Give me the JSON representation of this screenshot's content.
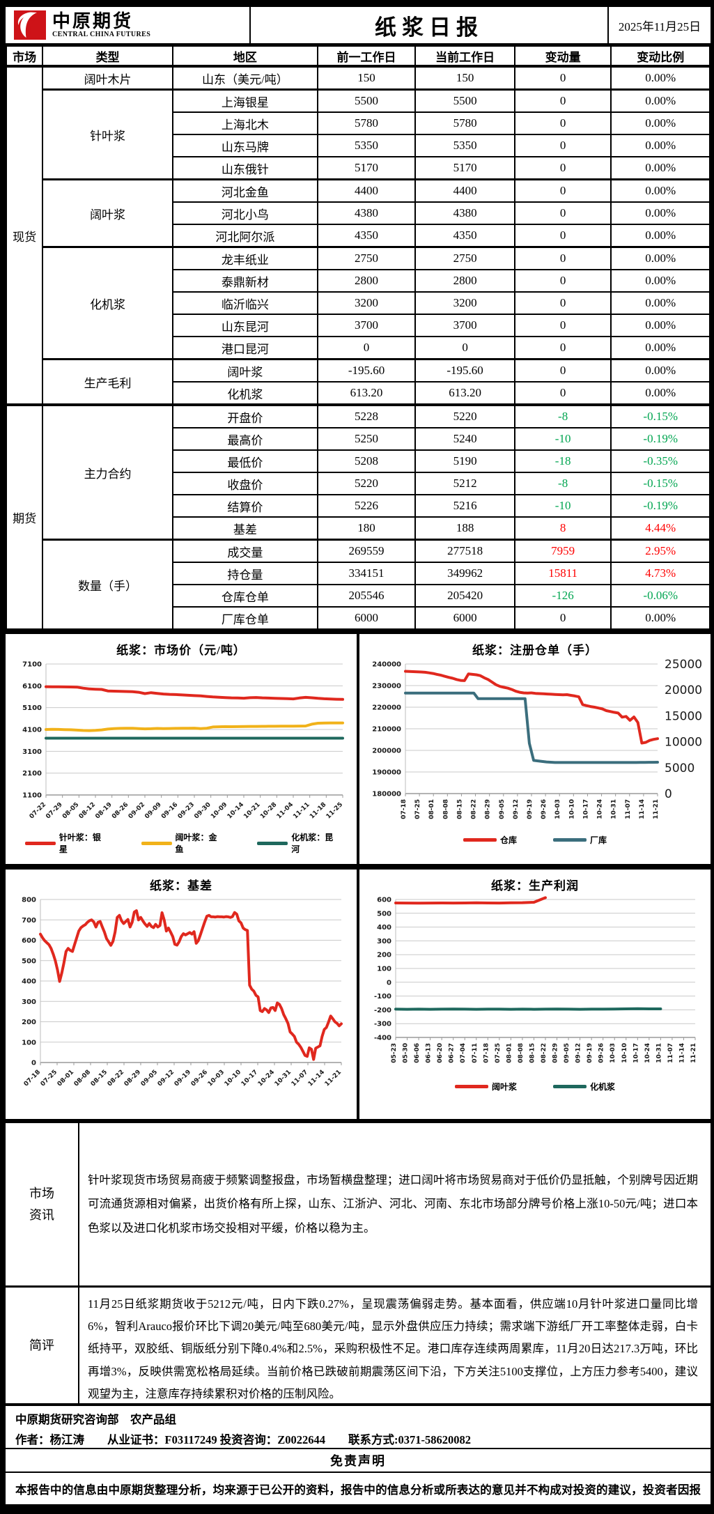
{
  "header": {
    "logo_cn": "中原期货",
    "logo_en": "CENTRAL CHINA FUTURES",
    "title": "纸浆日报",
    "date": "2025年11月25日"
  },
  "colors": {
    "up": "#fe0000",
    "down": "#00a550",
    "red_line": "#e0281e",
    "gold_line": "#f1b21a",
    "teal_line": "#1e685d",
    "slate_line": "#3b6e7d"
  },
  "table": {
    "columns": [
      "市场",
      "类型",
      "地区",
      "前一工作日",
      "当前工作日",
      "变动量",
      "变动比例"
    ],
    "sections": [
      {
        "market": "现货",
        "groups": [
          {
            "type": "阔叶木片",
            "rows": [
              [
                "山东（美元/吨）",
                "150",
                "150",
                "0",
                "0.00%"
              ]
            ]
          },
          {
            "type": "针叶浆",
            "rows": [
              [
                "上海银星",
                "5500",
                "5500",
                "0",
                "0.00%"
              ],
              [
                "上海北木",
                "5780",
                "5780",
                "0",
                "0.00%"
              ],
              [
                "山东马牌",
                "5350",
                "5350",
                "0",
                "0.00%"
              ],
              [
                "山东俄针",
                "5170",
                "5170",
                "0",
                "0.00%"
              ]
            ]
          },
          {
            "type": "阔叶浆",
            "rows": [
              [
                "河北金鱼",
                "4400",
                "4400",
                "0",
                "0.00%"
              ],
              [
                "河北小鸟",
                "4380",
                "4380",
                "0",
                "0.00%"
              ],
              [
                "河北阿尔派",
                "4350",
                "4350",
                "0",
                "0.00%"
              ]
            ]
          },
          {
            "type": "化机浆",
            "rows": [
              [
                "龙丰纸业",
                "2750",
                "2750",
                "0",
                "0.00%"
              ],
              [
                "泰鼎新材",
                "2800",
                "2800",
                "0",
                "0.00%"
              ],
              [
                "临沂临兴",
                "3200",
                "3200",
                "0",
                "0.00%"
              ],
              [
                "山东昆河",
                "3700",
                "3700",
                "0",
                "0.00%"
              ],
              [
                "港口昆河",
                "0",
                "0",
                "0",
                "0.00%"
              ]
            ]
          },
          {
            "type": "生产毛利",
            "rows": [
              [
                "阔叶浆",
                "-195.60",
                "-195.60",
                "0",
                "0.00%"
              ],
              [
                "化机浆",
                "613.20",
                "613.20",
                "0",
                "0.00%"
              ]
            ]
          }
        ]
      },
      {
        "market": "期货",
        "groups": [
          {
            "type": "主力合约",
            "rows": [
              [
                "开盘价",
                "5228",
                "5220",
                "-8",
                "-0.15%"
              ],
              [
                "最高价",
                "5250",
                "5240",
                "-10",
                "-0.19%"
              ],
              [
                "最低价",
                "5208",
                "5190",
                "-18",
                "-0.35%"
              ],
              [
                "收盘价",
                "5220",
                "5212",
                "-8",
                "-0.15%"
              ],
              [
                "结算价",
                "5226",
                "5216",
                "-10",
                "-0.19%"
              ],
              [
                "基差",
                "180",
                "188",
                "8",
                "4.44%"
              ]
            ]
          },
          {
            "type": "数量（手）",
            "rows": [
              [
                "成交量",
                "269559",
                "277518",
                "7959",
                "2.95%"
              ],
              [
                "持仓量",
                "334151",
                "349962",
                "15811",
                "4.73%"
              ],
              [
                "仓库仓单",
                "205546",
                "205420",
                "-126",
                "-0.06%"
              ],
              [
                "厂库仓单",
                "6000",
                "6000",
                "0",
                "0.00%"
              ]
            ]
          }
        ]
      }
    ]
  },
  "chart_data": [
    {
      "type": "line",
      "title": "纸浆：市场价（元/吨）",
      "ylim": [
        1100,
        7100
      ],
      "ystep": 1000,
      "grid": true,
      "legend_position": "bottom",
      "x_rotate": -45,
      "x_labels": [
        "07-22",
        "07-29",
        "08-05",
        "08-12",
        "08-19",
        "08-26",
        "09-02",
        "09-09",
        "09-16",
        "09-23",
        "09-30",
        "10-09",
        "10-14",
        "10-21",
        "10-28",
        "11-04",
        "11-11",
        "11-18",
        "11-25"
      ],
      "series": [
        {
          "name": "针叶浆：银星",
          "color": "#e0281e",
          "values": [
            6060,
            6055,
            6052,
            6050,
            6046,
            6042,
            5992,
            5958,
            5944,
            5934,
            5866,
            5856,
            5848,
            5840,
            5830,
            5804,
            5744,
            5786,
            5752,
            5724,
            5710,
            5698,
            5682,
            5668,
            5652,
            5638,
            5612,
            5592,
            5578,
            5562,
            5550,
            5542,
            5532,
            5556,
            5564,
            5550,
            5540,
            5530,
            5520,
            5510,
            5500,
            5542,
            5570,
            5552,
            5528,
            5508,
            5494,
            5484,
            5478
          ]
        },
        {
          "name": "阔叶浆：金鱼",
          "color": "#f1b21a",
          "values": [
            4100,
            4108,
            4102,
            4094,
            4086,
            4072,
            4056,
            4048,
            4060,
            4082,
            4118,
            4138,
            4150,
            4154,
            4158,
            4140,
            4128,
            4134,
            4148,
            4140,
            4144,
            4150,
            4154,
            4158,
            4162,
            4140,
            4158,
            4214,
            4226,
            4232,
            4228,
            4232,
            4238,
            4240,
            4242,
            4244,
            4246,
            4248,
            4250,
            4252,
            4254,
            4256,
            4258,
            4344,
            4386,
            4394,
            4400,
            4400,
            4400
          ]
        },
        {
          "name": "化机浆：昆河",
          "color": "#1e685d",
          "values": [
            3700,
            3700,
            3700,
            3700,
            3700,
            3700,
            3700,
            3700,
            3700,
            3700,
            3700,
            3700,
            3700,
            3700,
            3700,
            3700,
            3700,
            3700,
            3700,
            3700,
            3700,
            3700,
            3700,
            3700,
            3700,
            3700,
            3700,
            3700,
            3700,
            3700,
            3700,
            3700,
            3700,
            3700,
            3700,
            3700,
            3700,
            3700,
            3700,
            3700,
            3700,
            3700,
            3700,
            3700,
            3700,
            3700,
            3700,
            3700,
            3700
          ]
        }
      ]
    },
    {
      "type": "line",
      "title": "纸浆：注册仓单（手）",
      "ylim": [
        180000,
        240000
      ],
      "ystep": 10000,
      "y2lim": [
        0,
        25000
      ],
      "y2step": 5000,
      "grid": true,
      "legend_position": "bottom",
      "x_rotate": -90,
      "x_labels": [
        "07-18",
        "07-25",
        "08-01",
        "08-08",
        "08-15",
        "08-22",
        "08-29",
        "09-05",
        "09-12",
        "09-19",
        "09-26",
        "10-03",
        "10-10",
        "10-17",
        "10-24",
        "10-31",
        "11-07",
        "11-14",
        "11-21"
      ],
      "series": [
        {
          "name": "仓库",
          "color": "#e0281e",
          "values": [
            236600,
            236500,
            236450,
            236400,
            236300,
            236150,
            235900,
            235600,
            235200,
            234800,
            234300,
            233800,
            233400,
            232800,
            232400,
            232300,
            235400,
            235200,
            235000,
            234600,
            233600,
            232800,
            231600,
            230400,
            229600,
            229200,
            228800,
            228200,
            227400,
            226900,
            226600,
            226500,
            226600,
            226400,
            226300,
            226200,
            226100,
            226000,
            225900,
            225800,
            225700,
            225800,
            225500,
            225200,
            224800,
            221200,
            220700,
            220300,
            220000,
            219600,
            219200,
            218400,
            218000,
            217600,
            217300,
            215400,
            215700,
            213900,
            215500,
            212900,
            203400,
            203700,
            204600,
            205100,
            205420
          ]
        },
        {
          "name": "厂库",
          "color": "#3b6e7d",
          "axis": "right",
          "values": [
            19400,
            19400,
            19400,
            19400,
            19400,
            19400,
            19400,
            19400,
            19400,
            19400,
            19400,
            19400,
            19400,
            19400,
            19400,
            19400,
            19400,
            18300,
            18300,
            18300,
            18300,
            18300,
            18300,
            18300,
            18300,
            18300,
            18300,
            18300,
            18300,
            9700,
            6400,
            6300,
            6200,
            6100,
            6050,
            6000,
            6000,
            6000,
            6000,
            6000,
            6000,
            6000,
            6000,
            6000,
            6000,
            6000,
            6000,
            6000,
            6000,
            6000,
            6000,
            6000,
            6000,
            6000,
            6000,
            6010,
            6020,
            6030,
            6040,
            6050
          ]
        }
      ]
    },
    {
      "type": "line",
      "title": "纸浆：基差",
      "ylim": [
        0,
        800
      ],
      "ystep": 100,
      "grid": true,
      "legend_position": "none",
      "x_rotate": -45,
      "x_labels": [
        "07-18",
        "07-25",
        "08-01",
        "08-08",
        "08-15",
        "08-22",
        "08-29",
        "09-05",
        "09-12",
        "09-19",
        "09-26",
        "10-03",
        "10-10",
        "10-17",
        "10-24",
        "10-31",
        "11-07",
        "11-14",
        "11-21"
      ],
      "series": [
        {
          "name": "基差",
          "color": "#e0281e",
          "values": [
            630,
            612,
            598,
            588,
            578,
            560,
            532,
            500,
            455,
            398,
            438,
            488,
            545,
            560,
            550,
            545,
            578,
            612,
            645,
            662,
            670,
            676,
            688,
            696,
            700,
            690,
            665,
            688,
            692,
            665,
            640,
            608,
            592,
            575,
            595,
            640,
            712,
            722,
            696,
            682,
            692,
            702,
            665,
            688,
            738,
            745,
            700,
            712,
            695,
            680,
            668,
            682,
            668,
            662,
            678,
            665,
            672,
            735,
            700,
            645,
            660,
            640,
            618,
            580,
            576,
            592,
            618,
            632,
            626,
            632,
            638,
            630,
            642,
            585,
            598,
            628,
            660,
            690,
            718,
            722,
            715,
            715,
            714,
            716,
            715,
            715,
            714,
            716,
            715,
            712,
            716,
            736,
            728,
            695,
            685,
            660,
            652,
            648,
            380,
            360,
            350,
            330,
            322,
            255,
            250,
            265,
            258,
            245,
            268,
            270,
            255,
            292,
            285,
            265,
            235,
            215,
            192,
            150,
            140,
            128,
            100,
            90,
            75,
            55,
            35,
            30,
            72,
            65,
            15,
            70,
            76,
            82,
            128,
            162,
            172,
            198,
            228,
            215,
            200,
            192,
            180,
            190
          ]
        }
      ]
    },
    {
      "type": "line",
      "title": "纸浆：生产利润",
      "ylim": [
        -400,
        600
      ],
      "ystep": 100,
      "grid": true,
      "legend_position": "bottom",
      "x_rotate": -90,
      "x_labels": [
        "05-23",
        "05-30",
        "06-06",
        "06-13",
        "06-20",
        "06-27",
        "07-04",
        "07-11",
        "07-18",
        "07-25",
        "08-01",
        "08-08",
        "08-15",
        "08-22",
        "08-29",
        "09-05",
        "09-12",
        "09-19",
        "09-26",
        "10-03",
        "10-10",
        "10-17",
        "10-24",
        "10-31",
        "11-07",
        "11-14",
        "11-21"
      ],
      "series": [
        {
          "name": "阔叶浆",
          "color": "#e0281e",
          "values": [
            575,
            574,
            573,
            574,
            575,
            574,
            575,
            576,
            575,
            574,
            576,
            577,
            580,
            613,
            null,
            null,
            null,
            null,
            null,
            null,
            null,
            null,
            null,
            null,
            null,
            null,
            null
          ]
        },
        {
          "name": "化机浆",
          "color": "#1e685d",
          "values": [
            -195,
            -196,
            -195,
            -196,
            -195,
            -194,
            -195,
            -196,
            -195,
            -195,
            -196,
            -195,
            -196,
            -195,
            -194,
            -195,
            -196,
            -195,
            -195,
            -194,
            -193,
            -192,
            -193,
            -193,
            null,
            null,
            null
          ]
        }
      ]
    }
  ],
  "market_info": {
    "label_line1": "市场",
    "label_line2": "资讯",
    "text": "针叶浆现货市场贸易商疲于频繁调整报盘，市场暂横盘整理；进口阔叶将市场贸易商对于低价仍显抵触，个别牌号因近期可流通货源相对偏紧，出货价格有所上探，山东、江浙沪、河北、河南、东北市场部分牌号价格上涨10-50元/吨；进口本色浆以及进口化机浆市场交投相对平缓，价格以稳为主。"
  },
  "comment": {
    "label": "简评",
    "text": "11月25日纸浆期货收于5212元/吨，日内下跌0.27%，呈现震荡偏弱走势。基本面看，供应端10月针叶浆进口量同比增6%，智利Arauco报价环比下调20美元/吨至680美元/吨，显示外盘供应压力持续；需求端下游纸厂开工率整体走弱，白卡纸持平，双胶纸、铜版纸分别下降0.4%和2.5%，采购积极性不足。港口库存连续两周累库，11月20日达217.3万吨，环比再增3%，反映供需宽松格局延续。当前价格已跌破前期震荡区间下沿，下方关注5100支撑位，上方压力参考5400，建议观望为主，注意库存持续累积对价格的压制风险。"
  },
  "footer": {
    "dept_line": "中原期货研究咨询部　农产品组",
    "author_line": "作者：杨江涛　　从业证书：F03117249 投资咨询：Z0022644　　联系方式:0371-58620082"
  },
  "disclaimer": {
    "title": "免责声明",
    "text": "本报告中的信息由中原期货整理分析，均来源于已公开的资料，报告中的信息分析或所表达的意见并不构成对投资的建议，投资者因报告意见所做的判断，以及有可能产生的损失自行承担。期货交易有风险，投资者申请开立期货账户须满足证券期货投资者适当性要求，具备匹配的风险承受能力。"
  }
}
